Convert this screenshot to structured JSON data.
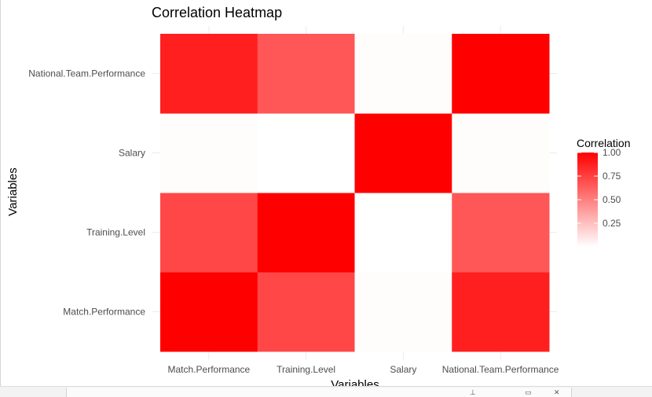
{
  "chart_data": {
    "type": "heatmap",
    "title": "Correlation Heatmap",
    "xlabel": "Variables",
    "ylabel": "Variables",
    "x_categories": [
      "Match.Performance",
      "Training.Level",
      "Salary",
      "National.Team.Performance"
    ],
    "y_categories": [
      "Match.Performance",
      "Training.Level",
      "Salary",
      "National.Team.Performance"
    ],
    "values": [
      [
        1.0,
        0.72,
        0.01,
        0.88
      ],
      [
        0.72,
        1.0,
        0.0,
        0.66
      ],
      [
        0.01,
        0.0,
        1.0,
        0.01
      ],
      [
        0.88,
        0.66,
        0.01,
        1.0
      ]
    ],
    "legend": {
      "title": "Correlation",
      "ticks": [
        "1.00",
        "0.75",
        "0.50",
        "0.25"
      ],
      "tick_values": [
        1.0,
        0.75,
        0.5,
        0.25
      ],
      "range": [
        0,
        1
      ],
      "placement": "right"
    },
    "colors": {
      "low": "#ffffff",
      "high": "#ff0000"
    },
    "grid": true
  }
}
